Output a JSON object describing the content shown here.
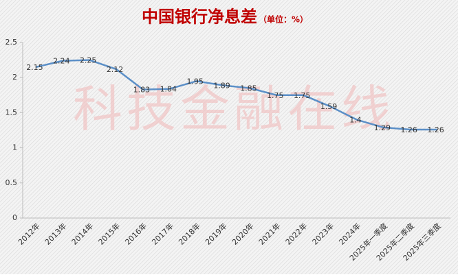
{
  "chart_data": {
    "type": "line",
    "title": "中国银行净息差",
    "subtitle": "（单位：%）",
    "watermark": "科技金融在线",
    "categories": [
      "2012年",
      "2013年",
      "2014年",
      "2015年",
      "2016年",
      "2017年",
      "2018年",
      "2019年",
      "2020年",
      "2021年",
      "2022年",
      "2023年",
      "2024年",
      "2025年一季度",
      "2025年二季度",
      "2025年三季度"
    ],
    "values": [
      2.15,
      2.24,
      2.25,
      2.12,
      1.83,
      1.84,
      1.95,
      1.89,
      1.85,
      1.75,
      1.75,
      1.59,
      1.4,
      1.29,
      1.26,
      1.26
    ],
    "color": "#5b8fc7",
    "ylim": [
      0,
      2.5
    ],
    "yticks": [
      0,
      0.5,
      1,
      1.5,
      2,
      2.5
    ],
    "grid": false
  }
}
